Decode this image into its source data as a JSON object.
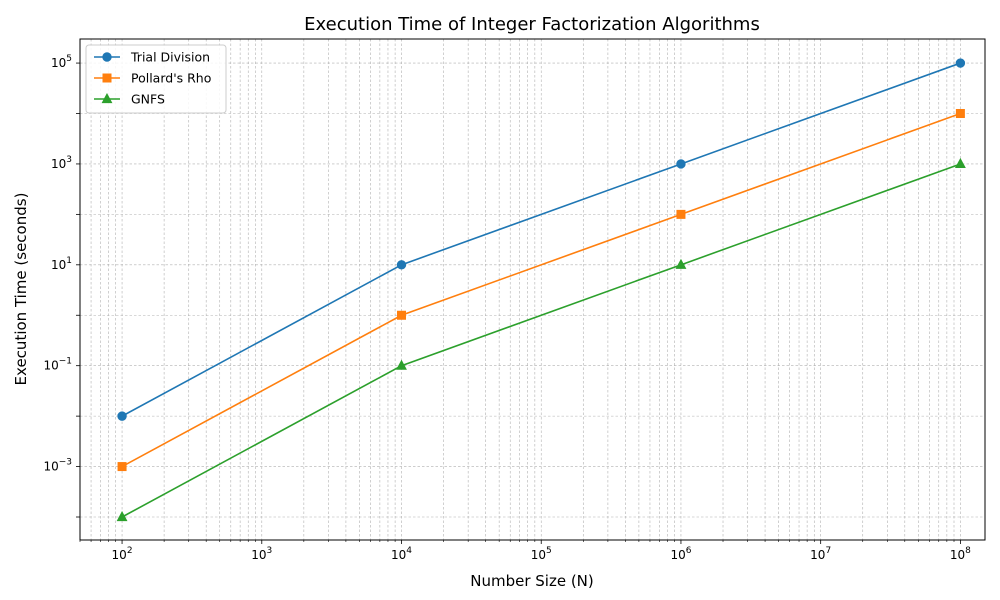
{
  "chart_data": {
    "type": "line",
    "title": "Execution Time of Integer Factorization Algorithms",
    "xlabel": "Number Size (N)",
    "ylabel": "Execution Time (seconds)",
    "xscale": "log",
    "yscale": "log",
    "xlim": [
      50,
      150000000
    ],
    "ylim": [
      3.5e-05,
      300000
    ],
    "grid": true,
    "legend_position": "top-left",
    "x": [
      100,
      10000,
      1000000,
      100000000
    ],
    "x_ticks": [
      {
        "base": "10",
        "exp": "2",
        "value": 100
      },
      {
        "base": "10",
        "exp": "3",
        "value": 1000
      },
      {
        "base": "10",
        "exp": "4",
        "value": 10000
      },
      {
        "base": "10",
        "exp": "5",
        "value": 100000
      },
      {
        "base": "10",
        "exp": "6",
        "value": 1000000
      },
      {
        "base": "10",
        "exp": "7",
        "value": 10000000
      },
      {
        "base": "10",
        "exp": "8",
        "value": 100000000
      }
    ],
    "y_ticks": [
      {
        "base": "10",
        "exp": "−3",
        "value": 0.001
      },
      {
        "base": "10",
        "exp": "−1",
        "value": 0.1
      },
      {
        "base": "10",
        "exp": "1",
        "value": 10
      },
      {
        "base": "10",
        "exp": "3",
        "value": 1000
      },
      {
        "base": "10",
        "exp": "5",
        "value": 100000
      }
    ],
    "series": [
      {
        "name": "Trial Division",
        "color": "#1f77b4",
        "marker": "circle",
        "values": [
          0.01,
          10,
          1000,
          100000
        ]
      },
      {
        "name": "Pollard's Rho",
        "color": "#ff7f0e",
        "marker": "square",
        "values": [
          0.001,
          1,
          100,
          10000
        ]
      },
      {
        "name": "GNFS",
        "color": "#2ca02c",
        "marker": "triangle",
        "values": [
          0.0001,
          0.1,
          10,
          1000
        ]
      }
    ]
  }
}
